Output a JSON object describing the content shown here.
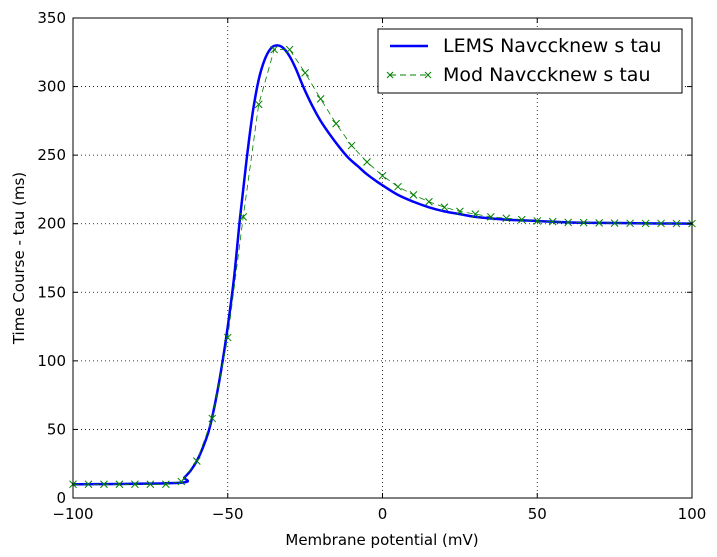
{
  "chart_data": {
    "type": "line",
    "xlabel": "Membrane potential (mV)",
    "ylabel": "Time Course - tau (ms)",
    "xlim": [
      -100,
      100
    ],
    "ylim": [
      0,
      350
    ],
    "xticks": [
      "−100",
      "−50",
      "0",
      "50",
      "100"
    ],
    "yticks": [
      "0",
      "50",
      "100",
      "150",
      "200",
      "250",
      "300",
      "350"
    ],
    "grid": true,
    "legend_position": "top-right",
    "series": [
      {
        "name": "LEMS Navccknew s tau",
        "color": "#0000ff",
        "style": "solid",
        "x": [
          -100,
          -66,
          -64,
          -62,
          -60,
          -58,
          -56,
          -54,
          -52,
          -50,
          -48,
          -46,
          -44,
          -42,
          -40,
          -38,
          -36,
          -34,
          -32,
          -30,
          -28,
          -26,
          -24,
          -22,
          -20,
          -17,
          -14,
          -11,
          -8,
          -5,
          -2,
          0,
          5,
          10,
          15,
          20,
          25,
          30,
          40,
          50,
          60,
          70,
          80,
          90,
          100
        ],
        "y": [
          10,
          11,
          15,
          20,
          27,
          37,
          50,
          70,
          95,
          125,
          160,
          205,
          245,
          280,
          305,
          320,
          328,
          330,
          328,
          322,
          313,
          302,
          292,
          283,
          275,
          265,
          256,
          248,
          242,
          236,
          231,
          228,
          221,
          216,
          212,
          209,
          207,
          205,
          203,
          202,
          201,
          200.6,
          200.4,
          200.2,
          200.1
        ]
      },
      {
        "name": "Mod Navccknew s tau",
        "color": "#008000",
        "style": "dashed-x",
        "x": [
          -100,
          -95,
          -90,
          -85,
          -80,
          -75,
          -70,
          -65,
          -60,
          -55,
          -50,
          -45,
          -40,
          -35,
          -30,
          -25,
          -20,
          -15,
          -10,
          -5,
          0,
          5,
          10,
          15,
          20,
          25,
          30,
          35,
          40,
          45,
          50,
          55,
          60,
          65,
          70,
          75,
          80,
          85,
          90,
          95,
          100
        ],
        "y": [
          10,
          10,
          10,
          10,
          10,
          10,
          10,
          12,
          27,
          58,
          117,
          205,
          287,
          327,
          327,
          310,
          291,
          273,
          257,
          245,
          235,
          227,
          221,
          216,
          212,
          209,
          207,
          205,
          204,
          203,
          202,
          201.5,
          201,
          200.8,
          200.6,
          200.4,
          200.3,
          200.2,
          200.2,
          200.1,
          200.1
        ]
      }
    ]
  }
}
